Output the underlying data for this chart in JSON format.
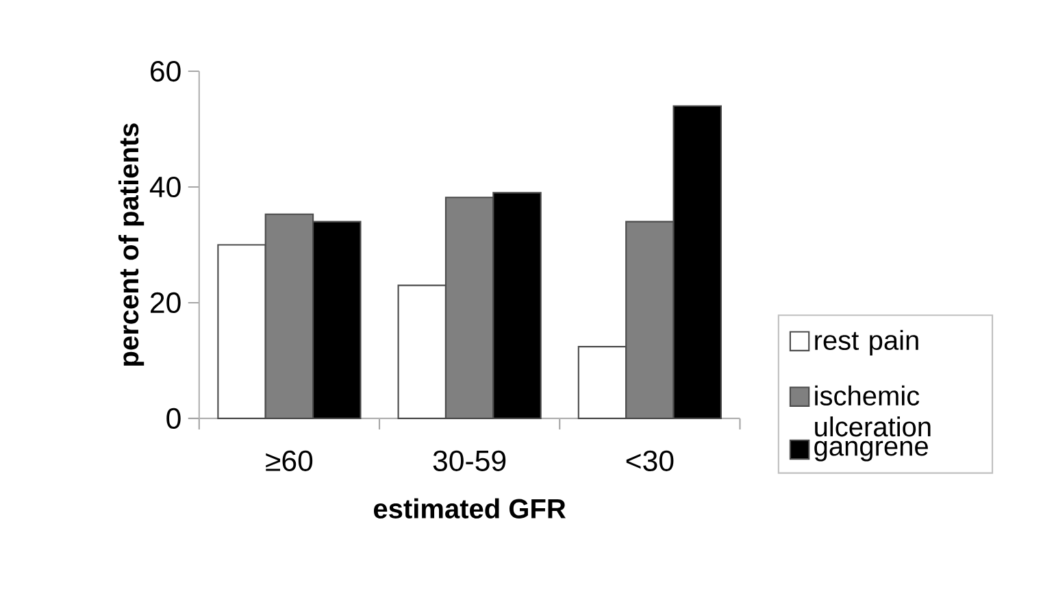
{
  "chart_data": {
    "type": "bar",
    "xlabel": "estimated GFR",
    "ylabel": "percent of patients",
    "categories": [
      "≥60",
      "30-59",
      "<30"
    ],
    "series": [
      {
        "name": "rest pain",
        "color": "#ffffff",
        "values": [
          30,
          23,
          12.4
        ]
      },
      {
        "name": "ischemic ulceration",
        "color": "#808080",
        "values": [
          35.3,
          38.2,
          34
        ]
      },
      {
        "name": "gangrene",
        "color": "#000000",
        "values": [
          34,
          39,
          54
        ]
      }
    ],
    "ylim": [
      0,
      60
    ],
    "yticks": [
      0,
      20,
      40,
      60
    ],
    "grid": false,
    "legend": "right"
  }
}
